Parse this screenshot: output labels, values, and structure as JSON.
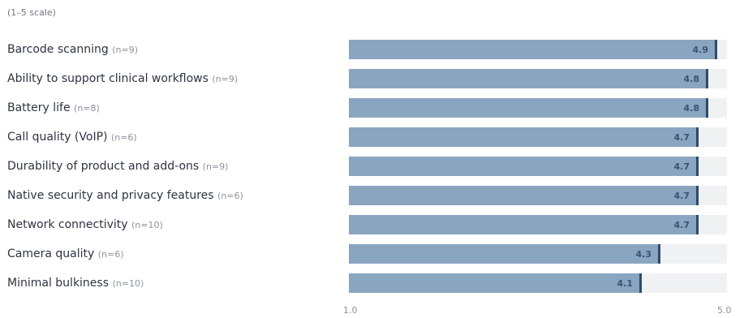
{
  "scale_note": "(1–5 scale)",
  "chart_data": {
    "type": "bar",
    "orientation": "horizontal",
    "title": "",
    "xlim": [
      1.0,
      5.0
    ],
    "x_ticks": [
      "1.0",
      "5.0"
    ],
    "categories": [
      {
        "label": "Barcode scanning",
        "n": "(n=9)"
      },
      {
        "label": "Ability to support clinical workflows",
        "n": "(n=9)"
      },
      {
        "label": "Battery life",
        "n": "(n=8)"
      },
      {
        "label": "Call quality (VoIP)",
        "n": "(n=6)"
      },
      {
        "label": "Durability of product and add-ons",
        "n": "(n=9)"
      },
      {
        "label": "Native security and privacy features",
        "n": "(n=6)"
      },
      {
        "label": "Network connectivity",
        "n": "(n=10)"
      },
      {
        "label": "Camera quality",
        "n": "(n=6)"
      },
      {
        "label": "Minimal bulkiness",
        "n": "(n=10)"
      }
    ],
    "values": [
      4.9,
      4.8,
      4.8,
      4.7,
      4.7,
      4.7,
      4.7,
      4.3,
      4.1
    ],
    "value_labels": [
      "4.9",
      "4.8",
      "4.8",
      "4.7",
      "4.7",
      "4.7",
      "4.7",
      "4.3",
      "4.1"
    ],
    "colors": {
      "bar": "#8aa5c0",
      "bar_end": "#2d4a6c",
      "track": "#f0f1f3"
    }
  }
}
